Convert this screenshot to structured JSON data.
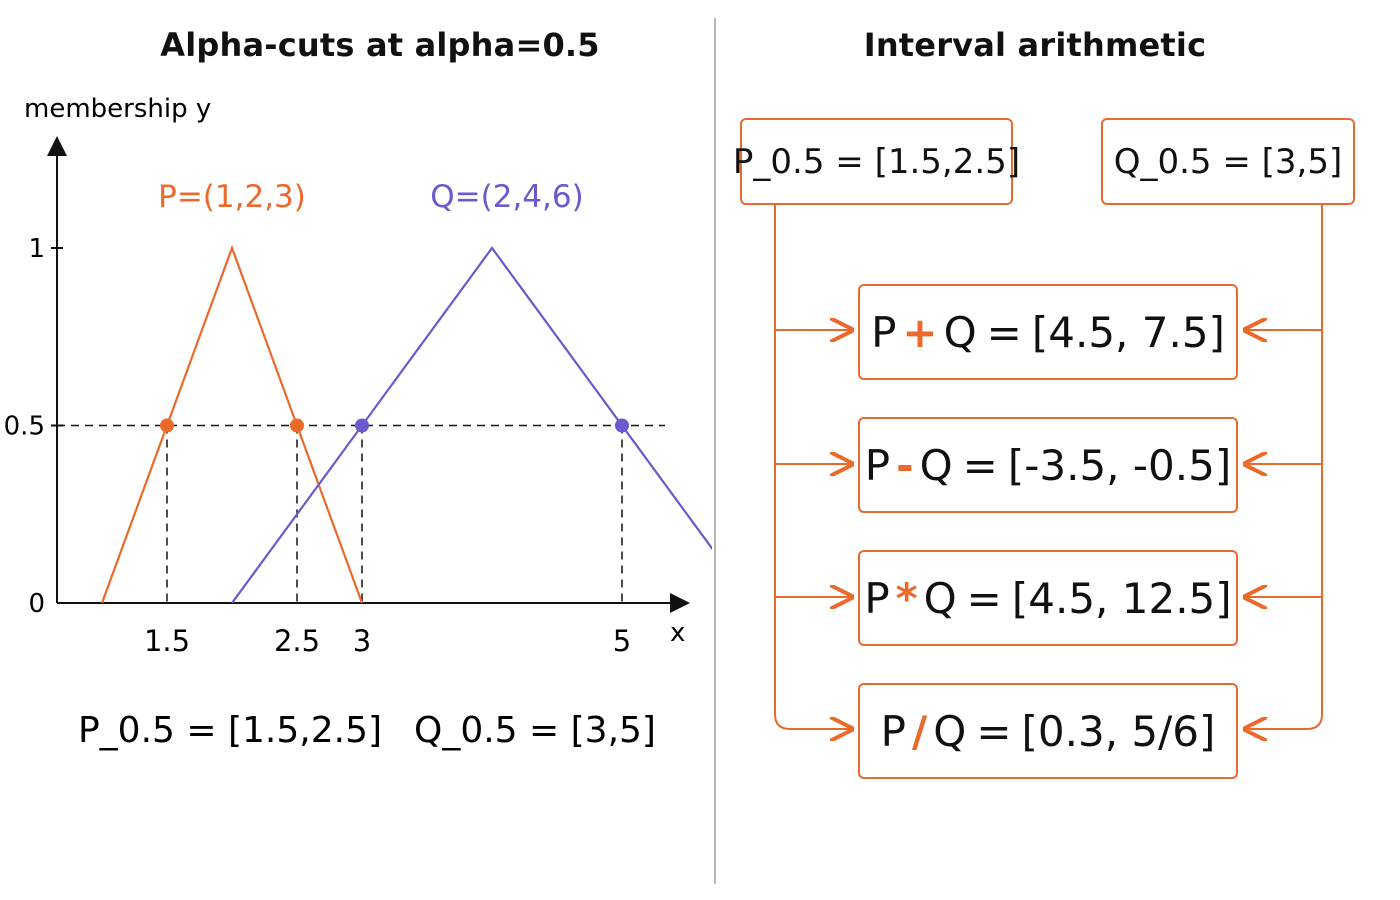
{
  "left_panel": {
    "title": "Alpha-cuts at alpha=0.5",
    "y_axis_label": "membership y",
    "x_axis_label": "x",
    "y_ticks": [
      "1",
      "0.5",
      "0"
    ],
    "x_ticks": [
      "1.5",
      "2.5",
      "3",
      "5"
    ],
    "p_label": "P=(1,2,3)",
    "q_label": "Q=(2,4,6)",
    "p_cut_text": "P_0.5 = [1.5,2.5]",
    "q_cut_text": "Q_0.5 = [3,5]"
  },
  "right_panel": {
    "title": "Interval arithmetic",
    "input_p": "P_0.5 = [1.5,2.5]",
    "input_q": "Q_0.5 = [3,5]",
    "operations": [
      {
        "left": "P",
        "symbol": "+",
        "right": "Q",
        "eq": "=",
        "result": "[4.5, 7.5]"
      },
      {
        "left": "P",
        "symbol": "-",
        "right": "Q",
        "eq": "=",
        "result": "[-3.5, -0.5]"
      },
      {
        "left": "P",
        "symbol": "*",
        "right": "Q",
        "eq": "=",
        "result": "[4.5, 12.5]"
      },
      {
        "left": "P",
        "symbol": "/",
        "right": "Q",
        "eq": "=",
        "result": "[0.3, 5/6]"
      }
    ]
  },
  "chart_data": {
    "type": "line",
    "title": "Alpha-cuts at alpha=0.5",
    "xlabel": "x",
    "ylabel": "membership y",
    "alpha": 0.5,
    "series": [
      {
        "name": "P=(1,2,3)",
        "color": "#ea6a2c",
        "x": [
          1,
          2,
          3
        ],
        "y": [
          0,
          1,
          0
        ],
        "cut_points": [
          1.5,
          2.5
        ]
      },
      {
        "name": "Q=(2,4,6)",
        "color": "#6a5acd",
        "x": [
          2,
          4,
          6
        ],
        "y": [
          0,
          1,
          0
        ],
        "cut_points": [
          3,
          5
        ]
      }
    ],
    "y_ticks": [
      0,
      0.5,
      1
    ],
    "x_ticks": [
      1.5,
      2.5,
      3,
      5
    ]
  },
  "colors": {
    "accent": "#ea6a2c",
    "q_series": "#6a5acd",
    "divider": "#b8b8b8"
  }
}
